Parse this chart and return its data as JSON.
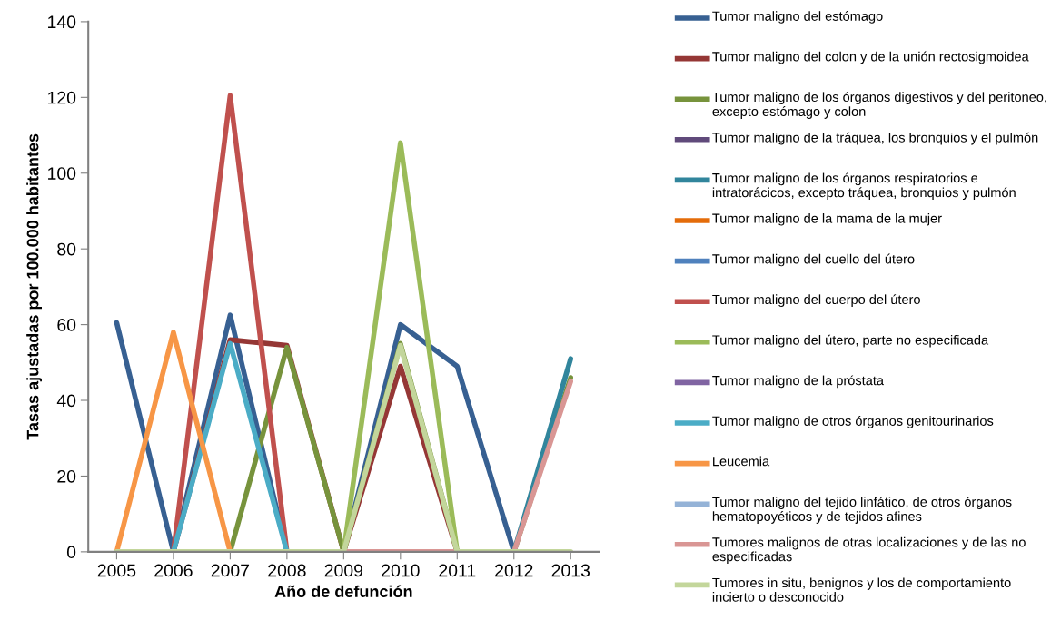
{
  "chart_data": {
    "type": "line",
    "xlabel": "Año de defunción",
    "ylabel": "Tasas ajustadas por 100.000 habitantes",
    "categories": [
      "2005",
      "2006",
      "2007",
      "2008",
      "2009",
      "2010",
      "2011",
      "2012",
      "2013"
    ],
    "ylim": [
      0,
      140
    ],
    "yticks": [
      0,
      20,
      40,
      60,
      80,
      100,
      120,
      140
    ],
    "grid": false,
    "legend": "right",
    "marker": "none",
    "line_style": "solid",
    "series": [
      {
        "name": "Tumor maligno del estómago",
        "color": "#376092",
        "values": [
          60.5,
          0,
          62.5,
          0,
          0,
          60,
          49,
          0,
          null
        ]
      },
      {
        "name": "Tumor maligno del colon y de la unión rectosigmoidea",
        "color": "#953735",
        "values": [
          null,
          0,
          56,
          54.5,
          0,
          49,
          0,
          null,
          null
        ]
      },
      {
        "name": "Tumor maligno de los órganos digestivos y del peritoneo, excepto estómago y colon",
        "color": "#77933c",
        "values": [
          null,
          null,
          0,
          54,
          0,
          55,
          0,
          0,
          46
        ]
      },
      {
        "name": "Tumor maligno de la tráquea, los bronquios y el pulmón",
        "color": "#604a7b",
        "values": [
          null,
          null,
          null,
          null,
          null,
          null,
          null,
          null,
          null
        ]
      },
      {
        "name": "Tumor maligno de los órganos respiratorios e intratorácicos, excepto tráquea, bronquios y pulmón",
        "color": "#31859c",
        "values": [
          null,
          null,
          null,
          null,
          null,
          null,
          null,
          0,
          51
        ]
      },
      {
        "name": "Tumor maligno de la mama de la mujer",
        "color": "#e46c0a",
        "values": [
          null,
          null,
          null,
          null,
          null,
          null,
          null,
          null,
          null
        ]
      },
      {
        "name": "Tumor maligno del cuello del útero",
        "color": "#4f81bd",
        "values": [
          null,
          null,
          null,
          null,
          null,
          null,
          null,
          null,
          null
        ]
      },
      {
        "name": "Tumor maligno del cuerpo del útero",
        "color": "#c0504d",
        "values": [
          null,
          0,
          120.5,
          0,
          null,
          null,
          null,
          null,
          null
        ]
      },
      {
        "name": "Tumor maligno del útero, parte no especificada",
        "color": "#9bbb59",
        "values": [
          null,
          null,
          null,
          null,
          0,
          108,
          0,
          null,
          null
        ]
      },
      {
        "name": "Tumor maligno de la próstata",
        "color": "#8064a2",
        "values": [
          null,
          null,
          null,
          null,
          null,
          null,
          null,
          null,
          null
        ]
      },
      {
        "name": "Tumor maligno de otros órganos genitourinarios",
        "color": "#4bacc6",
        "values": [
          null,
          0,
          55,
          0,
          null,
          null,
          null,
          null,
          null
        ]
      },
      {
        "name": "Leucemia",
        "color": "#f79646",
        "values": [
          0,
          58,
          0,
          null,
          null,
          null,
          null,
          null,
          null
        ]
      },
      {
        "name": "Tumor maligno del tejido linfático, de otros órganos hematopoyéticos y de tejidos afines",
        "color": "#95b3d7",
        "values": [
          null,
          null,
          null,
          null,
          null,
          null,
          null,
          null,
          null
        ]
      },
      {
        "name": "Tumores malignos de otras localizaciones y de las no especificadas",
        "color": "#d99694",
        "values": [
          null,
          null,
          null,
          null,
          0,
          0,
          0,
          0,
          45
        ]
      },
      {
        "name": "Tumores in situ, benignos y los de comportamiento incierto o desconocido",
        "color": "#c3d69b",
        "values": [
          0,
          0,
          0,
          0,
          0,
          54.5,
          0,
          0,
          0
        ]
      }
    ]
  }
}
